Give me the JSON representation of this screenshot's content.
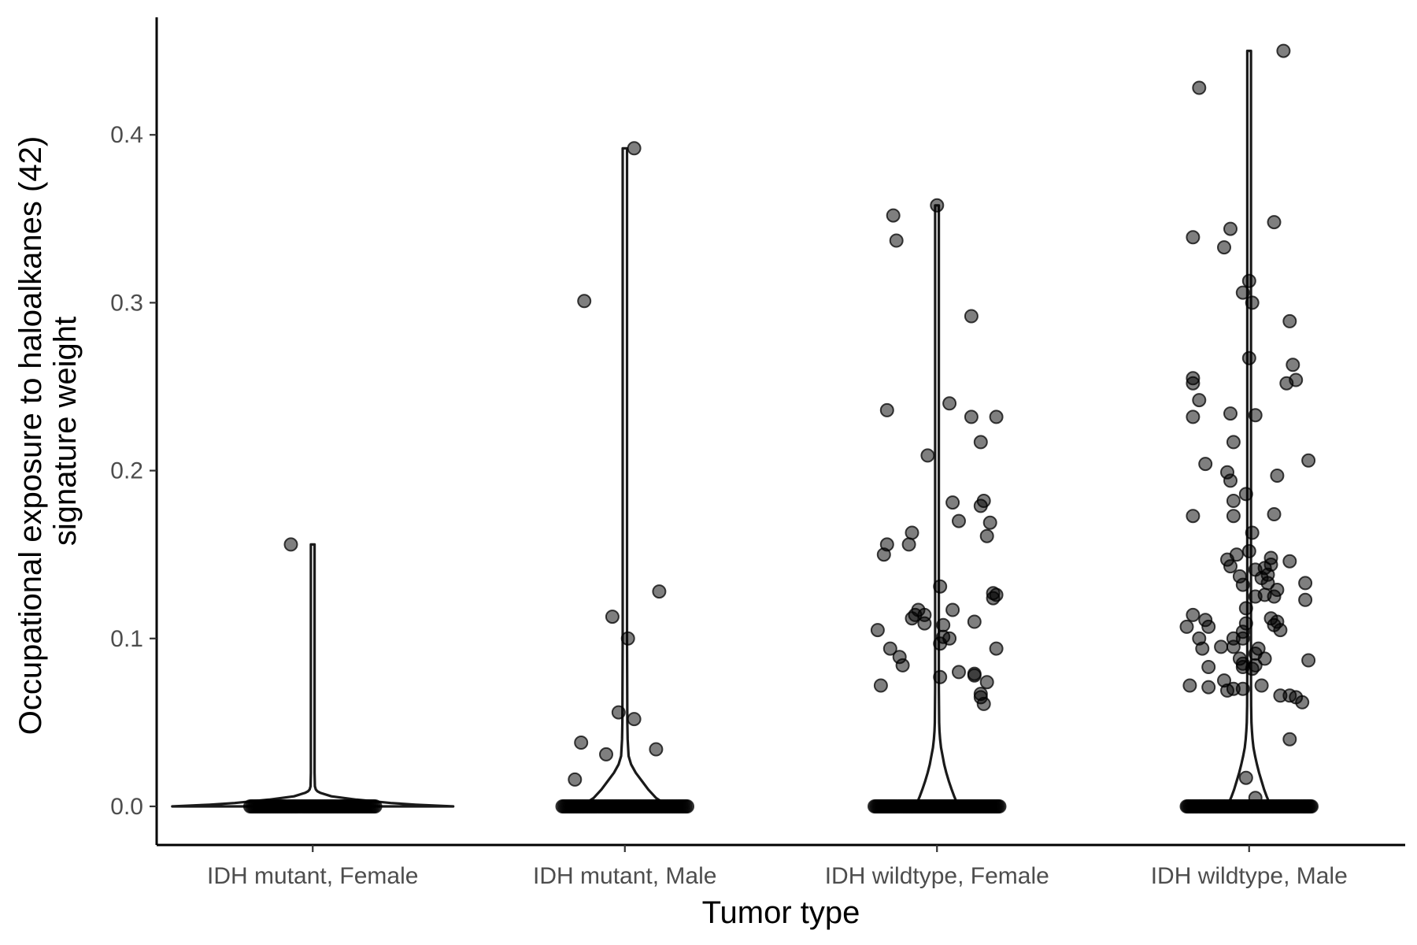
{
  "chart_data": {
    "type": "violin-jitter",
    "xlabel": "Tumor type",
    "ylabel_lines": [
      "Occupational exposure to haloalkanes (42)",
      "signature weight"
    ],
    "ylim": [
      -0.023,
      0.47
    ],
    "yticks": [
      0.0,
      0.1,
      0.2,
      0.3,
      0.4
    ],
    "ytick_labels": [
      "0.0",
      "0.1",
      "0.2",
      "0.3",
      "0.4"
    ],
    "grid": false,
    "legend": "none",
    "point_color": "#000000",
    "categories": [
      "IDH mutant, Female",
      "IDH mutant, Male",
      "IDH wildtype, Female",
      "IDH wildtype, Male"
    ],
    "groups": [
      {
        "category": "IDH mutant, Female",
        "max": 0.156,
        "zero_count": 70,
        "nonzero_points": [
          [
            -0.07,
            0.156
          ]
        ],
        "violin": {
          "y": [
            0,
            0.001,
            0.002,
            0.004,
            0.006,
            0.008,
            0.009,
            0.01,
            0.012,
            0.02,
            0.05,
            0.1,
            0.156
          ],
          "half_width": [
            0.45,
            0.33,
            0.25,
            0.14,
            0.06,
            0.025,
            0.015,
            0.01,
            0.007,
            0.006,
            0.006,
            0.006,
            0.006
          ]
        }
      },
      {
        "category": "IDH mutant, Male",
        "max": 0.392,
        "zero_count": 70,
        "nonzero_points": [
          [
            0.03,
            0.392
          ],
          [
            -0.13,
            0.301
          ],
          [
            0.11,
            0.128
          ],
          [
            -0.04,
            0.113
          ],
          [
            0.01,
            0.1
          ],
          [
            -0.02,
            0.056
          ],
          [
            0.03,
            0.052
          ],
          [
            -0.14,
            0.038
          ],
          [
            0.1,
            0.034
          ],
          [
            -0.06,
            0.031
          ],
          [
            -0.16,
            0.016
          ]
        ],
        "violin": {
          "y": [
            0,
            0.005,
            0.01,
            0.015,
            0.02,
            0.025,
            0.03,
            0.04,
            0.05,
            0.1,
            0.2,
            0.3,
            0.392
          ],
          "half_width": [
            0.14,
            0.1,
            0.075,
            0.055,
            0.035,
            0.02,
            0.012,
            0.009,
            0.008,
            0.007,
            0.007,
            0.007,
            0.007
          ]
        }
      },
      {
        "category": "IDH wildtype, Female",
        "max": 0.358,
        "zero_count": 80,
        "nonzero_points": [
          [
            0.0,
            0.358
          ],
          [
            -0.14,
            0.352
          ],
          [
            -0.13,
            0.337
          ],
          [
            0.11,
            0.292
          ],
          [
            0.04,
            0.24
          ],
          [
            -0.16,
            0.236
          ],
          [
            0.11,
            0.232
          ],
          [
            0.19,
            0.232
          ],
          [
            0.14,
            0.217
          ],
          [
            -0.03,
            0.209
          ],
          [
            0.15,
            0.182
          ],
          [
            0.05,
            0.181
          ],
          [
            0.14,
            0.179
          ],
          [
            0.17,
            0.169
          ],
          [
            0.07,
            0.17
          ],
          [
            -0.08,
            0.163
          ],
          [
            0.16,
            0.161
          ],
          [
            -0.16,
            0.156
          ],
          [
            -0.09,
            0.156
          ],
          [
            -0.17,
            0.15
          ],
          [
            0.01,
            0.131
          ],
          [
            0.18,
            0.127
          ],
          [
            0.19,
            0.126
          ],
          [
            0.18,
            0.124
          ],
          [
            -0.06,
            0.117
          ],
          [
            0.05,
            0.117
          ],
          [
            -0.07,
            0.114
          ],
          [
            -0.04,
            0.114
          ],
          [
            -0.08,
            0.112
          ],
          [
            0.12,
            0.11
          ],
          [
            -0.04,
            0.109
          ],
          [
            0.02,
            0.108
          ],
          [
            -0.19,
            0.105
          ],
          [
            0.02,
            0.101
          ],
          [
            0.04,
            0.1
          ],
          [
            0.01,
            0.097
          ],
          [
            0.19,
            0.094
          ],
          [
            -0.15,
            0.094
          ],
          [
            -0.12,
            0.089
          ],
          [
            -0.11,
            0.084
          ],
          [
            0.07,
            0.08
          ],
          [
            0.12,
            0.079
          ],
          [
            0.12,
            0.078
          ],
          [
            0.01,
            0.077
          ],
          [
            0.16,
            0.074
          ],
          [
            -0.18,
            0.072
          ],
          [
            0.14,
            0.067
          ],
          [
            0.14,
            0.065
          ],
          [
            0.15,
            0.061
          ]
        ],
        "violin": {
          "y": [
            0,
            0.003,
            0.006,
            0.01,
            0.015,
            0.02,
            0.025,
            0.03,
            0.035,
            0.04,
            0.045,
            0.05,
            0.06,
            0.07,
            0.1,
            0.2,
            0.3,
            0.358
          ],
          "half_width": [
            0.07,
            0.062,
            0.055,
            0.047,
            0.038,
            0.03,
            0.023,
            0.018,
            0.013,
            0.01,
            0.008,
            0.007,
            0.0065,
            0.006,
            0.006,
            0.006,
            0.006,
            0.006
          ]
        }
      },
      {
        "category": "IDH wildtype, Male",
        "max": 0.45,
        "zero_count": 90,
        "nonzero_points": [
          [
            0.11,
            0.45
          ],
          [
            -0.16,
            0.428
          ],
          [
            0.08,
            0.348
          ],
          [
            -0.06,
            0.344
          ],
          [
            -0.18,
            0.339
          ],
          [
            -0.08,
            0.333
          ],
          [
            0.0,
            0.313
          ],
          [
            -0.02,
            0.306
          ],
          [
            0.01,
            0.3
          ],
          [
            0.13,
            0.289
          ],
          [
            0.0,
            0.267
          ],
          [
            0.14,
            0.263
          ],
          [
            0.15,
            0.254
          ],
          [
            -0.18,
            0.255
          ],
          [
            0.12,
            0.252
          ],
          [
            -0.18,
            0.252
          ],
          [
            -0.16,
            0.242
          ],
          [
            -0.06,
            0.234
          ],
          [
            0.02,
            0.233
          ],
          [
            -0.18,
            0.232
          ],
          [
            -0.05,
            0.217
          ],
          [
            0.19,
            0.206
          ],
          [
            -0.14,
            0.204
          ],
          [
            0.09,
            0.197
          ],
          [
            -0.07,
            0.199
          ],
          [
            -0.06,
            0.194
          ],
          [
            -0.01,
            0.186
          ],
          [
            -0.05,
            0.182
          ],
          [
            0.01,
            0.163
          ],
          [
            -0.05,
            0.173
          ],
          [
            0.08,
            0.174
          ],
          [
            -0.18,
            0.173
          ],
          [
            -0.04,
            0.15
          ],
          [
            0.0,
            0.152
          ],
          [
            0.07,
            0.148
          ],
          [
            -0.07,
            0.147
          ],
          [
            0.13,
            0.146
          ],
          [
            0.07,
            0.144
          ],
          [
            -0.06,
            0.143
          ],
          [
            0.05,
            0.142
          ],
          [
            0.02,
            0.141
          ],
          [
            0.06,
            0.138
          ],
          [
            -0.03,
            0.137
          ],
          [
            0.04,
            0.136
          ],
          [
            0.06,
            0.133
          ],
          [
            0.18,
            0.133
          ],
          [
            -0.02,
            0.132
          ],
          [
            0.09,
            0.129
          ],
          [
            0.05,
            0.126
          ],
          [
            0.02,
            0.125
          ],
          [
            0.08,
            0.125
          ],
          [
            0.18,
            0.123
          ],
          [
            -0.18,
            0.114
          ],
          [
            -0.01,
            0.118
          ],
          [
            0.07,
            0.112
          ],
          [
            0.09,
            0.11
          ],
          [
            -0.14,
            0.111
          ],
          [
            -0.01,
            0.109
          ],
          [
            0.08,
            0.108
          ],
          [
            -0.2,
            0.107
          ],
          [
            -0.13,
            0.107
          ],
          [
            0.1,
            0.105
          ],
          [
            -0.02,
            0.104
          ],
          [
            -0.16,
            0.1
          ],
          [
            -0.05,
            0.1
          ],
          [
            -0.02,
            0.1
          ],
          [
            -0.09,
            0.095
          ],
          [
            -0.05,
            0.095
          ],
          [
            0.03,
            0.094
          ],
          [
            -0.15,
            0.094
          ],
          [
            0.02,
            0.091
          ],
          [
            -0.03,
            0.088
          ],
          [
            0.05,
            0.088
          ],
          [
            0.19,
            0.087
          ],
          [
            -0.02,
            0.085
          ],
          [
            0.02,
            0.084
          ],
          [
            -0.13,
            0.083
          ],
          [
            -0.02,
            0.083
          ],
          [
            0.01,
            0.082
          ],
          [
            -0.08,
            0.075
          ],
          [
            -0.19,
            0.072
          ],
          [
            0.04,
            0.072
          ],
          [
            -0.05,
            0.07
          ],
          [
            -0.13,
            0.071
          ],
          [
            -0.02,
            0.07
          ],
          [
            -0.07,
            0.069
          ],
          [
            0.1,
            0.066
          ],
          [
            0.13,
            0.066
          ],
          [
            0.15,
            0.065
          ],
          [
            0.17,
            0.062
          ],
          [
            0.13,
            0.04
          ],
          [
            -0.01,
            0.017
          ],
          [
            0.02,
            0.005
          ]
        ],
        "violin": {
          "y": [
            0,
            0.003,
            0.006,
            0.01,
            0.015,
            0.02,
            0.025,
            0.03,
            0.035,
            0.04,
            0.045,
            0.05,
            0.06,
            0.08,
            0.1,
            0.2,
            0.3,
            0.4,
            0.45
          ],
          "half_width": [
            0.07,
            0.063,
            0.056,
            0.048,
            0.04,
            0.032,
            0.025,
            0.019,
            0.014,
            0.011,
            0.009,
            0.0075,
            0.0065,
            0.006,
            0.006,
            0.006,
            0.006,
            0.006,
            0.006
          ]
        }
      }
    ]
  }
}
